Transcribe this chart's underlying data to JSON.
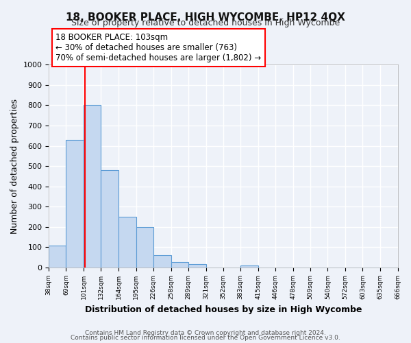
{
  "title": "18, BOOKER PLACE, HIGH WYCOMBE, HP12 4QX",
  "subtitle": "Size of property relative to detached houses in High Wycombe",
  "xlabel": "Distribution of detached houses by size in High Wycombe",
  "ylabel": "Number of detached properties",
  "bar_edges": [
    38,
    69,
    101,
    132,
    164,
    195,
    226,
    258,
    289,
    321,
    352,
    383,
    415,
    446,
    478,
    509,
    540,
    572,
    603,
    635,
    666
  ],
  "bar_heights": [
    110,
    630,
    800,
    480,
    250,
    200,
    60,
    28,
    18,
    0,
    0,
    10,
    0,
    0,
    0,
    0,
    0,
    0,
    0,
    0
  ],
  "bar_color": "#c5d8f0",
  "bar_edge_color": "#5b9bd5",
  "vline_x": 103,
  "vline_color": "red",
  "annotation_line1": "18 BOOKER PLACE: 103sqm",
  "annotation_line2": "← 30% of detached houses are smaller (763)",
  "annotation_line3": "70% of semi-detached houses are larger (1,802) →",
  "annotation_box_color": "#ffffff",
  "annotation_box_edge": "red",
  "ylim": [
    0,
    1000
  ],
  "tick_labels": [
    "38sqm",
    "69sqm",
    "101sqm",
    "132sqm",
    "164sqm",
    "195sqm",
    "226sqm",
    "258sqm",
    "289sqm",
    "321sqm",
    "352sqm",
    "383sqm",
    "415sqm",
    "446sqm",
    "478sqm",
    "509sqm",
    "540sqm",
    "572sqm",
    "603sqm",
    "635sqm",
    "666sqm"
  ],
  "footer1": "Contains HM Land Registry data © Crown copyright and database right 2024.",
  "footer2": "Contains public sector information licensed under the Open Government Licence v3.0.",
  "background_color": "#eef2f9",
  "grid_color": "#ffffff"
}
